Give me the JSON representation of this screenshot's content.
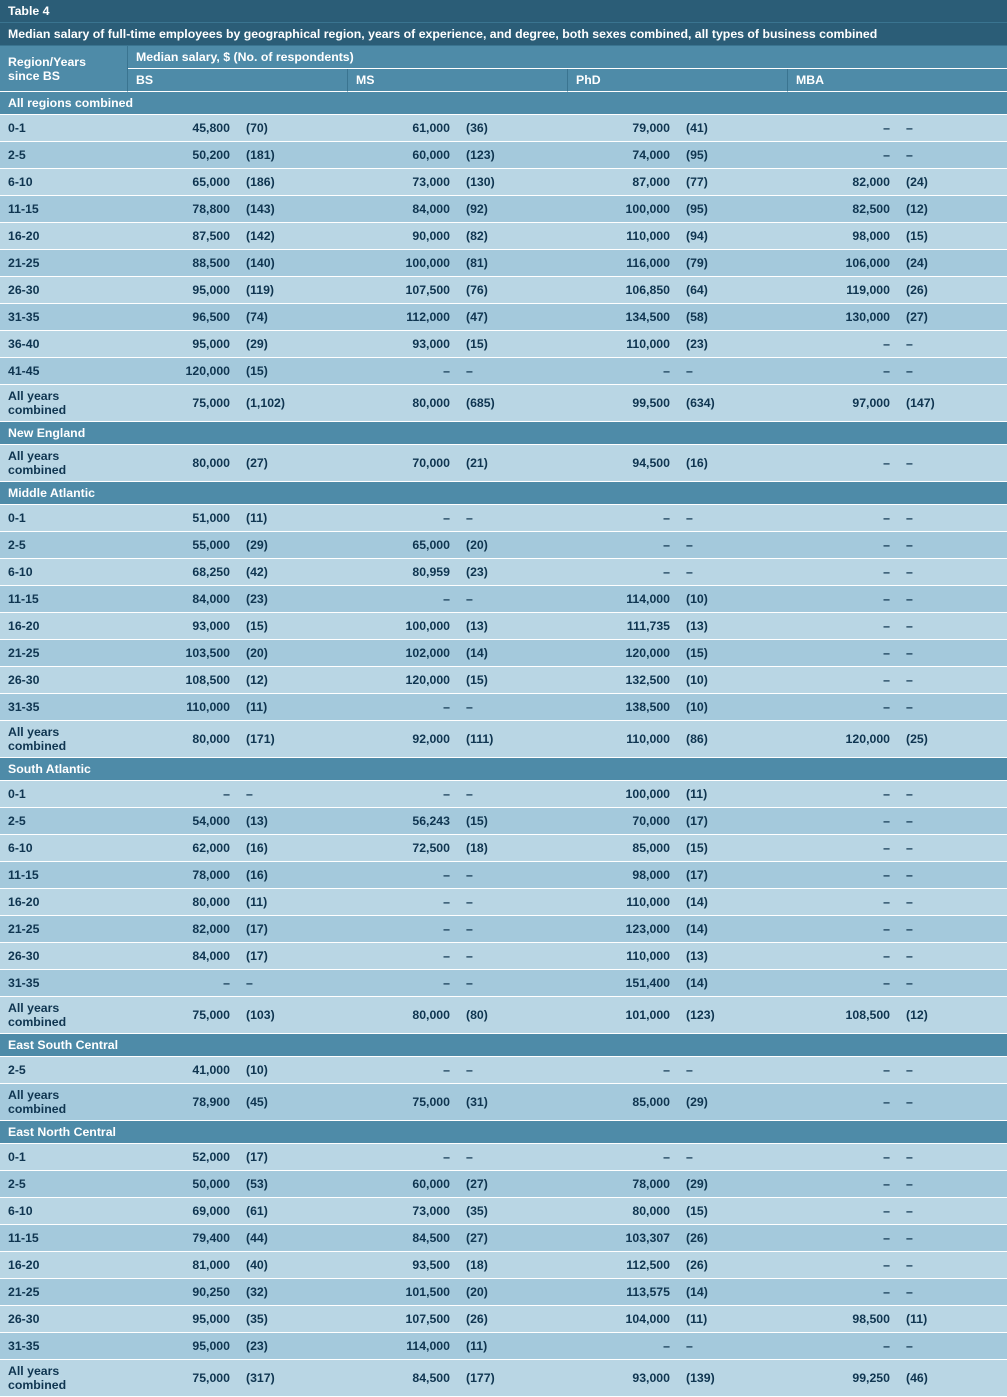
{
  "table": {
    "number": "Table 4",
    "caption": "Median salary of full-time employees by geographical region, years of experience, and degree, both sexes combined, all types of business combined",
    "rowhead": "Region/Years since BS",
    "colhead_top": "Median salary, $ (No. of respondents)",
    "degrees": [
      "BS",
      "MS",
      "PhD",
      "MBA"
    ],
    "dash": "–",
    "sections": [
      {
        "name": "All regions combined",
        "rows": [
          {
            "label": "0-1",
            "v": [
              [
                "45,800",
                "70"
              ],
              [
                "61,000",
                "36"
              ],
              [
                "79,000",
                "41"
              ],
              [
                null,
                null
              ]
            ]
          },
          {
            "label": "2-5",
            "v": [
              [
                "50,200",
                "181"
              ],
              [
                "60,000",
                "123"
              ],
              [
                "74,000",
                "95"
              ],
              [
                null,
                null
              ]
            ]
          },
          {
            "label": "6-10",
            "v": [
              [
                "65,000",
                "186"
              ],
              [
                "73,000",
                "130"
              ],
              [
                "87,000",
                "77"
              ],
              [
                "82,000",
                "24"
              ]
            ]
          },
          {
            "label": "11-15",
            "v": [
              [
                "78,800",
                "143"
              ],
              [
                "84,000",
                "92"
              ],
              [
                "100,000",
                "95"
              ],
              [
                "82,500",
                "12"
              ]
            ]
          },
          {
            "label": "16-20",
            "v": [
              [
                "87,500",
                "142"
              ],
              [
                "90,000",
                "82"
              ],
              [
                "110,000",
                "94"
              ],
              [
                "98,000",
                "15"
              ]
            ]
          },
          {
            "label": "21-25",
            "v": [
              [
                "88,500",
                "140"
              ],
              [
                "100,000",
                "81"
              ],
              [
                "116,000",
                "79"
              ],
              [
                "106,000",
                "24"
              ]
            ]
          },
          {
            "label": "26-30",
            "v": [
              [
                "95,000",
                "119"
              ],
              [
                "107,500",
                "76"
              ],
              [
                "106,850",
                "64"
              ],
              [
                "119,000",
                "26"
              ]
            ]
          },
          {
            "label": "31-35",
            "v": [
              [
                "96,500",
                "74"
              ],
              [
                "112,000",
                "47"
              ],
              [
                "134,500",
                "58"
              ],
              [
                "130,000",
                "27"
              ]
            ]
          },
          {
            "label": "36-40",
            "v": [
              [
                "95,000",
                "29"
              ],
              [
                "93,000",
                "15"
              ],
              [
                "110,000",
                "23"
              ],
              [
                null,
                null
              ]
            ]
          },
          {
            "label": "41-45",
            "v": [
              [
                "120,000",
                "15"
              ],
              [
                null,
                null
              ],
              [
                null,
                null
              ],
              [
                null,
                null
              ]
            ]
          },
          {
            "label": "All years combined",
            "v": [
              [
                "75,000",
                "1,102"
              ],
              [
                "80,000",
                "685"
              ],
              [
                "99,500",
                "634"
              ],
              [
                "97,000",
                "147"
              ]
            ]
          }
        ]
      },
      {
        "name": "New England",
        "rows": [
          {
            "label": "All years combined",
            "v": [
              [
                "80,000",
                "27"
              ],
              [
                "70,000",
                "21"
              ],
              [
                "94,500",
                "16"
              ],
              [
                null,
                null
              ]
            ]
          }
        ]
      },
      {
        "name": "Middle Atlantic",
        "rows": [
          {
            "label": "0-1",
            "v": [
              [
                "51,000",
                "11"
              ],
              [
                null,
                null
              ],
              [
                null,
                null
              ],
              [
                null,
                null
              ]
            ]
          },
          {
            "label": "2-5",
            "v": [
              [
                "55,000",
                "29"
              ],
              [
                "65,000",
                "20"
              ],
              [
                null,
                null
              ],
              [
                null,
                null
              ]
            ]
          },
          {
            "label": "6-10",
            "v": [
              [
                "68,250",
                "42"
              ],
              [
                "80,959",
                "23"
              ],
              [
                null,
                null
              ],
              [
                null,
                null
              ]
            ]
          },
          {
            "label": "11-15",
            "v": [
              [
                "84,000",
                "23"
              ],
              [
                null,
                null
              ],
              [
                "114,000",
                "10"
              ],
              [
                null,
                null
              ]
            ]
          },
          {
            "label": "16-20",
            "v": [
              [
                "93,000",
                "15"
              ],
              [
                "100,000",
                "13"
              ],
              [
                "111,735",
                "13"
              ],
              [
                null,
                null
              ]
            ]
          },
          {
            "label": "21-25",
            "v": [
              [
                "103,500",
                "20"
              ],
              [
                "102,000",
                "14"
              ],
              [
                "120,000",
                "15"
              ],
              [
                null,
                null
              ]
            ]
          },
          {
            "label": "26-30",
            "v": [
              [
                "108,500",
                "12"
              ],
              [
                "120,000",
                "15"
              ],
              [
                "132,500",
                "10"
              ],
              [
                null,
                null
              ]
            ]
          },
          {
            "label": "31-35",
            "v": [
              [
                "110,000",
                "11"
              ],
              [
                null,
                null
              ],
              [
                "138,500",
                "10"
              ],
              [
                null,
                null
              ]
            ]
          },
          {
            "label": "All years combined",
            "v": [
              [
                "80,000",
                "171"
              ],
              [
                "92,000",
                "111"
              ],
              [
                "110,000",
                "86"
              ],
              [
                "120,000",
                "25"
              ]
            ]
          }
        ]
      },
      {
        "name": "South Atlantic",
        "rows": [
          {
            "label": "0-1",
            "v": [
              [
                null,
                null
              ],
              [
                null,
                null
              ],
              [
                "100,000",
                "11"
              ],
              [
                null,
                null
              ]
            ]
          },
          {
            "label": "2-5",
            "v": [
              [
                "54,000",
                "13"
              ],
              [
                "56,243",
                "15"
              ],
              [
                "70,000",
                "17"
              ],
              [
                null,
                null
              ]
            ]
          },
          {
            "label": "6-10",
            "v": [
              [
                "62,000",
                "16"
              ],
              [
                "72,500",
                "18"
              ],
              [
                "85,000",
                "15"
              ],
              [
                null,
                null
              ]
            ]
          },
          {
            "label": "11-15",
            "v": [
              [
                "78,000",
                "16"
              ],
              [
                null,
                null
              ],
              [
                "98,000",
                "17"
              ],
              [
                null,
                null
              ]
            ]
          },
          {
            "label": "16-20",
            "v": [
              [
                "80,000",
                "11"
              ],
              [
                null,
                null
              ],
              [
                "110,000",
                "14"
              ],
              [
                null,
                null
              ]
            ]
          },
          {
            "label": "21-25",
            "v": [
              [
                "82,000",
                "17"
              ],
              [
                null,
                null
              ],
              [
                "123,000",
                "14"
              ],
              [
                null,
                null
              ]
            ]
          },
          {
            "label": "26-30",
            "v": [
              [
                "84,000",
                "17"
              ],
              [
                null,
                null
              ],
              [
                "110,000",
                "13"
              ],
              [
                null,
                null
              ]
            ]
          },
          {
            "label": "31-35",
            "v": [
              [
                null,
                null
              ],
              [
                null,
                null
              ],
              [
                "151,400",
                "14"
              ],
              [
                null,
                null
              ]
            ]
          },
          {
            "label": "All years combined",
            "v": [
              [
                "75,000",
                "103"
              ],
              [
                "80,000",
                "80"
              ],
              [
                "101,000",
                "123"
              ],
              [
                "108,500",
                "12"
              ]
            ]
          }
        ]
      },
      {
        "name": "East South Central",
        "rows": [
          {
            "label": "2-5",
            "v": [
              [
                "41,000",
                "10"
              ],
              [
                null,
                null
              ],
              [
                null,
                null
              ],
              [
                null,
                null
              ]
            ]
          },
          {
            "label": "All years combined",
            "v": [
              [
                "78,900",
                "45"
              ],
              [
                "75,000",
                "31"
              ],
              [
                "85,000",
                "29"
              ],
              [
                null,
                null
              ]
            ]
          }
        ]
      },
      {
        "name": "East North Central",
        "rows": [
          {
            "label": "0-1",
            "v": [
              [
                "52,000",
                "17"
              ],
              [
                null,
                null
              ],
              [
                null,
                null
              ],
              [
                null,
                null
              ]
            ]
          },
          {
            "label": "2-5",
            "v": [
              [
                "50,000",
                "53"
              ],
              [
                "60,000",
                "27"
              ],
              [
                "78,000",
                "29"
              ],
              [
                null,
                null
              ]
            ]
          },
          {
            "label": "6-10",
            "v": [
              [
                "69,000",
                "61"
              ],
              [
                "73,000",
                "35"
              ],
              [
                "80,000",
                "15"
              ],
              [
                null,
                null
              ]
            ]
          },
          {
            "label": "11-15",
            "v": [
              [
                "79,400",
                "44"
              ],
              [
                "84,500",
                "27"
              ],
              [
                "103,307",
                "26"
              ],
              [
                null,
                null
              ]
            ]
          },
          {
            "label": "16-20",
            "v": [
              [
                "81,000",
                "40"
              ],
              [
                "93,500",
                "18"
              ],
              [
                "112,500",
                "26"
              ],
              [
                null,
                null
              ]
            ]
          },
          {
            "label": "21-25",
            "v": [
              [
                "90,250",
                "32"
              ],
              [
                "101,500",
                "20"
              ],
              [
                "113,575",
                "14"
              ],
              [
                null,
                null
              ]
            ]
          },
          {
            "label": "26-30",
            "v": [
              [
                "95,000",
                "35"
              ],
              [
                "107,500",
                "26"
              ],
              [
                "104,000",
                "11"
              ],
              [
                "98,500",
                "11"
              ]
            ]
          },
          {
            "label": "31-35",
            "v": [
              [
                "95,000",
                "23"
              ],
              [
                "114,000",
                "11"
              ],
              [
                null,
                null
              ],
              [
                null,
                null
              ]
            ]
          },
          {
            "label": "All years combined",
            "v": [
              [
                "75,000",
                "317"
              ],
              [
                "84,500",
                "177"
              ],
              [
                "93,000",
                "139"
              ],
              [
                "99,250",
                "46"
              ]
            ]
          }
        ]
      }
    ]
  }
}
